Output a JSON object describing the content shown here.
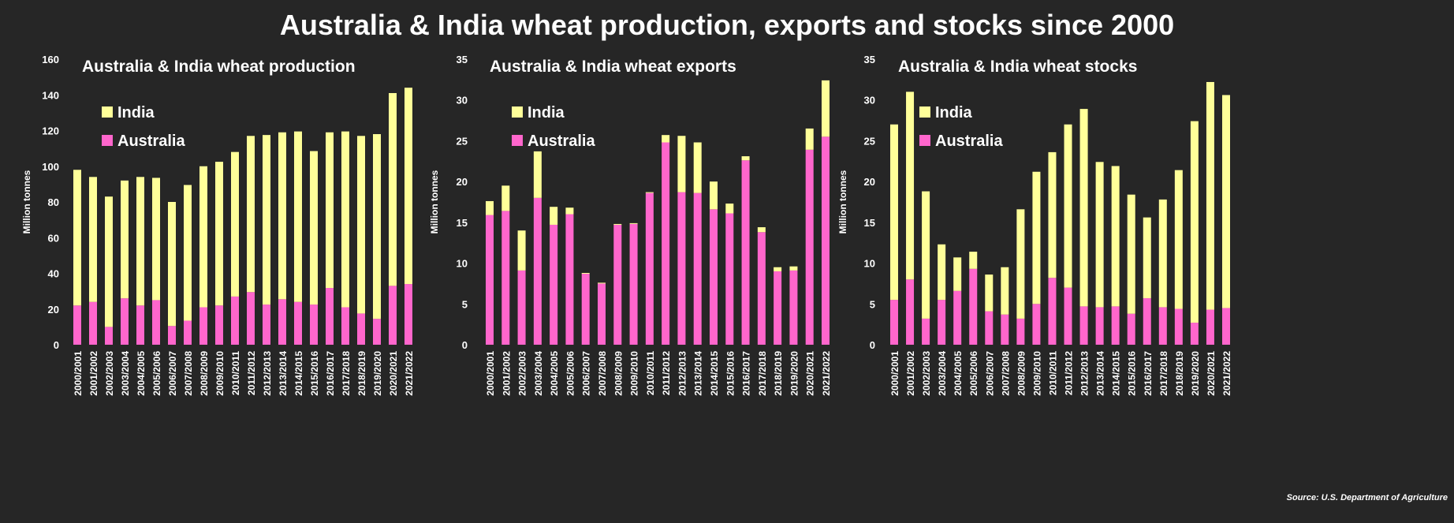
{
  "title": "Australia & India wheat production, exports and stocks since 2000",
  "source": "Source: U.S. Department of Agriculture",
  "colors": {
    "india": "#FFFF99",
    "australia": "#FF66CC",
    "background": "#262626"
  },
  "chart_data": [
    {
      "type": "bar",
      "stacked": true,
      "title": "Australia & India wheat production",
      "ylabel": "Million tonnes",
      "ylim": [
        0,
        160
      ],
      "yticks": [
        0,
        20,
        40,
        60,
        80,
        100,
        120,
        140,
        160
      ],
      "legend": [
        "India",
        "Australia"
      ],
      "categories": [
        "2000/2001",
        "2001/2002",
        "2002/2003",
        "2003/2004",
        "2004/2005",
        "2005/2006",
        "2006/2007",
        "2007/2008",
        "2008/2009",
        "2009/2010",
        "2010/2011",
        "2011/2012",
        "2012/2013",
        "2013/2014",
        "2014/2015",
        "2015/2016",
        "2016/2017",
        "2017/2018",
        "2018/2019",
        "2019/2020",
        "2020/2021",
        "2021/2022"
      ],
      "series": [
        {
          "name": "Australia",
          "values": [
            22,
            24,
            10,
            26,
            22,
            25,
            10.5,
            13.5,
            21,
            22,
            27,
            29.5,
            22.5,
            25.5,
            24,
            22.5,
            31.8,
            21,
            17.5,
            14.5,
            33,
            34
          ]
        },
        {
          "name": "India",
          "values": [
            76,
            70,
            73,
            66,
            72,
            68.5,
            69.5,
            76,
            79,
            80.5,
            81,
            87.5,
            95,
            93.5,
            95.5,
            86,
            87.2,
            98.5,
            99.5,
            103.5,
            108,
            110
          ]
        }
      ]
    },
    {
      "type": "bar",
      "stacked": true,
      "title": "Australia & India wheat exports",
      "ylabel": "Million tonnes",
      "ylim": [
        0,
        35
      ],
      "yticks": [
        0,
        5,
        10,
        15,
        20,
        25,
        30,
        35
      ],
      "legend": [
        "India",
        "Australia"
      ],
      "categories": [
        "2000/2001",
        "2001/2002",
        "2002/2003",
        "2003/2004",
        "2004/2005",
        "2005/2006",
        "2006/2007",
        "2007/2008",
        "2008/2009",
        "2009/2010",
        "2010/2011",
        "2011/2012",
        "2012/2013",
        "2013/2014",
        "2014/2015",
        "2015/2016",
        "2016/2017",
        "2017/2018",
        "2018/2019",
        "2019/2020",
        "2020/2021",
        "2021/2022"
      ],
      "series": [
        {
          "name": "Australia",
          "values": [
            15.9,
            16.4,
            9.1,
            18,
            14.7,
            16,
            8.7,
            7.5,
            14.7,
            14.8,
            18.6,
            24.8,
            18.7,
            18.6,
            16.6,
            16.1,
            22.6,
            13.8,
            9,
            9.1,
            23.9,
            25.5
          ]
        },
        {
          "name": "India",
          "values": [
            1.7,
            3.1,
            4.9,
            5.7,
            2.2,
            0.8,
            0.1,
            0.1,
            0.1,
            0.1,
            0.1,
            0.9,
            6.9,
            6.2,
            3.4,
            1.2,
            0.5,
            0.6,
            0.5,
            0.5,
            2.6,
            6.9
          ]
        }
      ]
    },
    {
      "type": "bar",
      "stacked": true,
      "title": "Australia & India wheat stocks",
      "ylabel": "Million tonnes",
      "ylim": [
        0,
        35
      ],
      "yticks": [
        0,
        5,
        10,
        15,
        20,
        25,
        30,
        35
      ],
      "legend": [
        "India",
        "Australia"
      ],
      "categories": [
        "2000/2001",
        "2001/2002",
        "2002/2003",
        "2003/2004",
        "2004/2005",
        "2005/2006",
        "2006/2007",
        "2007/2008",
        "2008/2009",
        "2009/2010",
        "2010/2011",
        "2011/2012",
        "2012/2013",
        "2013/2014",
        "2014/2015",
        "2015/2016",
        "2016/2017",
        "2017/2018",
        "2018/2019",
        "2019/2020",
        "2020/2021",
        "2021/2022"
      ],
      "series": [
        {
          "name": "Australia",
          "values": [
            5.5,
            8,
            3.2,
            5.5,
            6.6,
            9.3,
            4.1,
            3.7,
            3.2,
            5,
            8.2,
            7,
            4.7,
            4.6,
            4.7,
            3.8,
            5.7,
            4.6,
            4.4,
            2.7,
            4.3,
            4.5
          ]
        },
        {
          "name": "India",
          "values": [
            21.5,
            23,
            15.6,
            6.8,
            4.1,
            2.1,
            4.5,
            5.8,
            13.4,
            16.2,
            15.4,
            20,
            24.2,
            17.8,
            17.2,
            14.6,
            9.9,
            13.2,
            17,
            24.7,
            27.9,
            26.1
          ]
        }
      ]
    }
  ]
}
